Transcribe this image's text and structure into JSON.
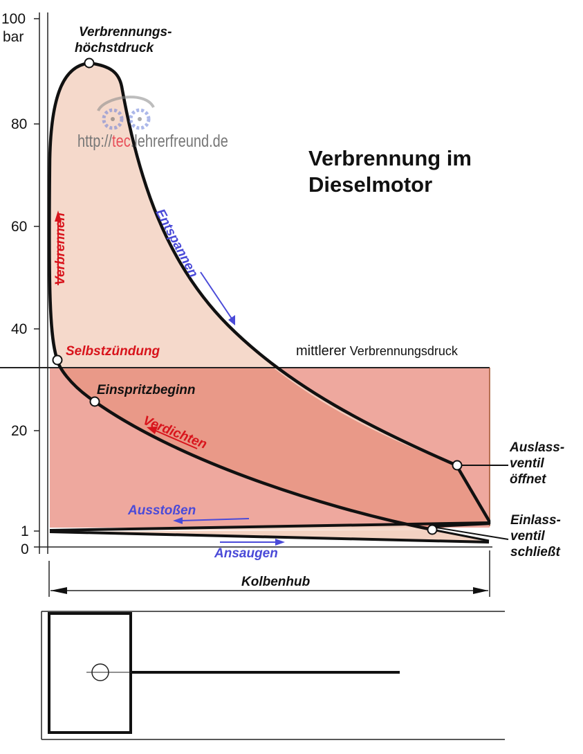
{
  "axis": {
    "ticks": [
      "100",
      "80",
      "60",
      "40",
      "20",
      "1",
      "0"
    ],
    "unit": "bar"
  },
  "title": [
    "Verbrennung im",
    "Dieselmotor"
  ],
  "labels": {
    "peak": [
      "Verbrennungs-",
      "höchstdruck"
    ],
    "ignition": "Selbstzündung",
    "injection": "Einspritzbeginn",
    "burn": "Verbrennen",
    "expand": "Entspannen",
    "compress": "Verdichten",
    "exhaust": "Ausstoßen",
    "intake": "Ansaugen",
    "mean_a": "mittlerer",
    "mean_b": "Verbrennungsdruck",
    "outlet": [
      "Auslass-",
      "ventil",
      "öffnet"
    ],
    "inlet": [
      "Einlass-",
      "ventil",
      "schließt"
    ],
    "stroke": "Kolbenhub"
  },
  "watermark": {
    "pre": "http://",
    "mid": "tec",
    "post": ".lehrerfreund.de"
  },
  "colors": {
    "light": "#f3d2c2",
    "rect": "#eea89e",
    "dark": "#e68c7a",
    "red": "#d8141c",
    "blue": "#4a4ad8"
  }
}
